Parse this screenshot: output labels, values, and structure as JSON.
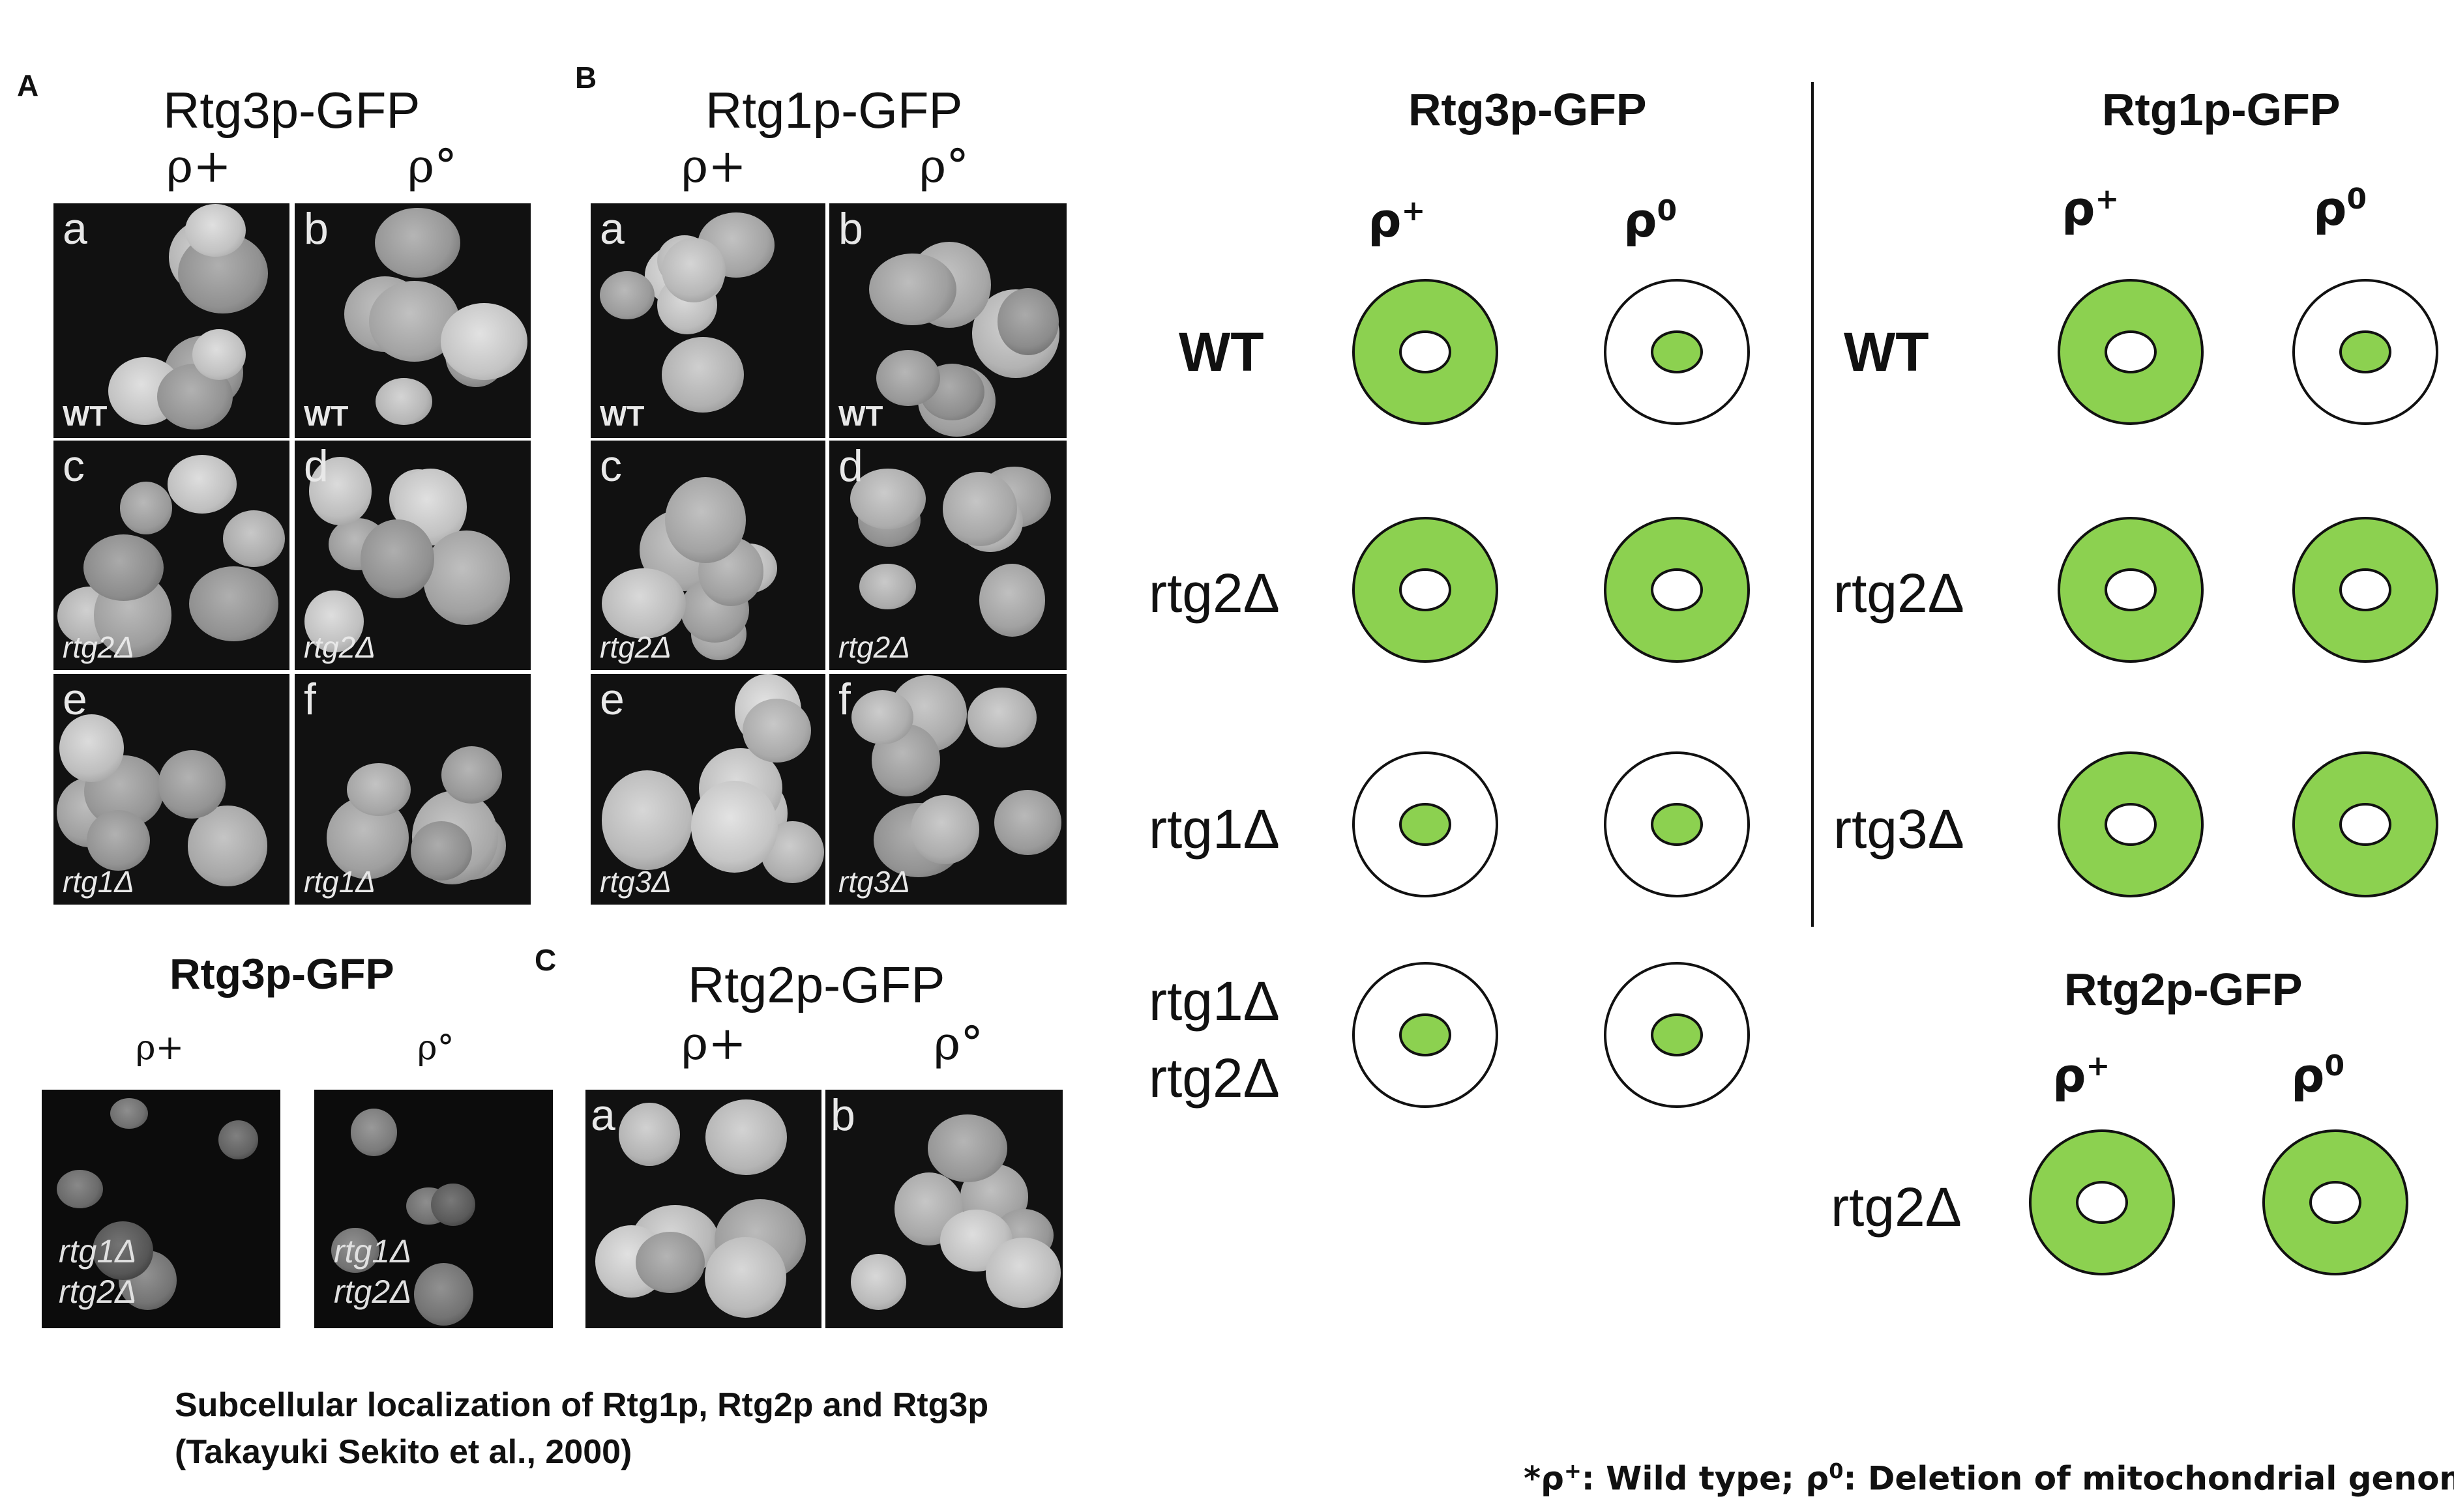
{
  "left_figure": {
    "panel_a": {
      "letter": "A",
      "title": "Rtg3p-GFP",
      "col_headers": [
        "ρ+",
        "ρ°"
      ],
      "tiles": [
        {
          "letter": "a",
          "genotype": "WT"
        },
        {
          "letter": "b",
          "genotype": "WT"
        },
        {
          "letter": "c",
          "genotype": "rtg2Δ"
        },
        {
          "letter": "d",
          "genotype": "rtg2Δ"
        },
        {
          "letter": "e",
          "genotype": "rtg1Δ"
        },
        {
          "letter": "f",
          "genotype": "rtg1Δ"
        }
      ]
    },
    "panel_b": {
      "letter": "B",
      "title": "Rtg1p-GFP",
      "col_headers": [
        "ρ+",
        "ρ°"
      ],
      "tiles": [
        {
          "letter": "a",
          "genotype": "WT"
        },
        {
          "letter": "b",
          "genotype": "WT"
        },
        {
          "letter": "c",
          "genotype": "rtg2Δ"
        },
        {
          "letter": "d",
          "genotype": "rtg2Δ"
        },
        {
          "letter": "e",
          "genotype": "rtg3Δ"
        },
        {
          "letter": "f",
          "genotype": "rtg3Δ"
        }
      ]
    },
    "panel_extra": {
      "title": "Rtg3p-GFP",
      "col_headers": [
        "ρ+",
        "ρ°"
      ],
      "tiles": [
        {
          "line1": "rtg1Δ",
          "line2": "rtg2Δ"
        },
        {
          "line1": "rtg1Δ",
          "line2": "rtg2Δ"
        }
      ]
    },
    "panel_c": {
      "letter": "C",
      "title": "Rtg2p-GFP",
      "col_headers": [
        "ρ+",
        "ρ°"
      ],
      "tiles": [
        {
          "letter": "a"
        },
        {
          "letter": "b"
        }
      ]
    },
    "caption_line1": "Subcellular localization of Rtg1p, Rtg2p and Rtg3p",
    "caption_line2": "(Takayuki Sekito et al., 2000)"
  },
  "schematic": {
    "colors": {
      "cytoplasm_green": "#8cd150",
      "outline": "#111111"
    },
    "rtg3": {
      "title": "Rtg3p-GFP",
      "col_rho_plus": {
        "base": "ρ",
        "sup": "+"
      },
      "col_rho_zero": {
        "base": "ρ",
        "sup": "0"
      },
      "rows": [
        {
          "label": "WT",
          "plus": "cytoplasmic",
          "zero": "nuclear"
        },
        {
          "label": "rtg2Δ",
          "plus": "cytoplasmic",
          "zero": "cytoplasmic"
        },
        {
          "label": "rtg1Δ",
          "plus": "nuclear",
          "zero": "nuclear"
        },
        {
          "label_line1": "rtg1Δ",
          "label_line2": "rtg2Δ",
          "plus": "nuclear",
          "zero": "nuclear"
        }
      ]
    },
    "rtg1": {
      "title": "Rtg1p-GFP",
      "col_rho_plus": {
        "base": "ρ",
        "sup": "+"
      },
      "col_rho_zero": {
        "base": "ρ",
        "sup": "0"
      },
      "rows": [
        {
          "label": "WT",
          "plus": "cytoplasmic",
          "zero": "nuclear"
        },
        {
          "label": "rtg2Δ",
          "plus": "cytoplasmic",
          "zero": "cytoplasmic"
        },
        {
          "label": "rtg3Δ",
          "plus": "cytoplasmic",
          "zero": "cytoplasmic"
        }
      ]
    },
    "rtg2": {
      "title": "Rtg2p-GFP",
      "col_rho_plus": {
        "base": "ρ",
        "sup": "+"
      },
      "col_rho_zero": {
        "base": "ρ",
        "sup": "0"
      },
      "rows": [
        {
          "label": "rtg2Δ",
          "plus": "cytoplasmic",
          "zero": "cytoplasmic"
        }
      ]
    },
    "footnote": {
      "prefix": "*ρ",
      "sup1": "+",
      "mid": ": Wild type; ρ",
      "sup2": "0",
      "suffix": ": Deletion of mitochondrial genome"
    }
  }
}
